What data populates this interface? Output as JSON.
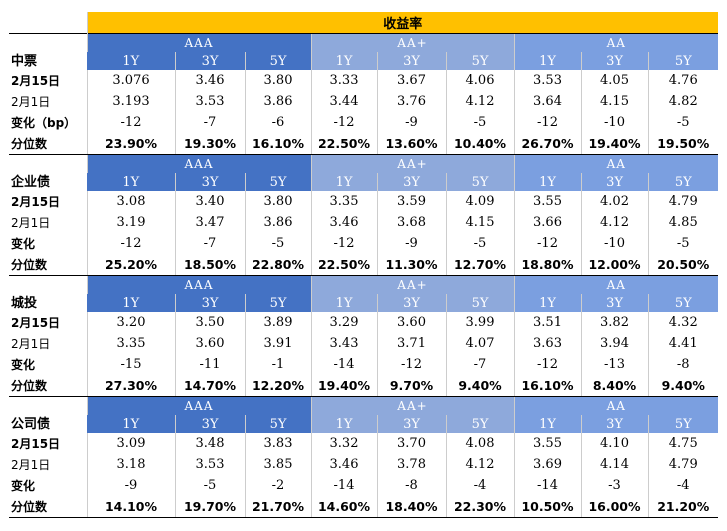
{
  "title": "收益率",
  "tenors": [
    "1Y",
    "3Y",
    "5Y"
  ],
  "sections": [
    {
      "name": "中票",
      "ratings": [
        "AAA",
        "AA+",
        "AA"
      ],
      "rows": [
        {
          "label": "2月15日",
          "bold": true,
          "values": [
            "3.076",
            "3.46",
            "3.80",
            "3.33",
            "3.67",
            "4.06",
            "3.53",
            "4.05",
            "4.76"
          ]
        },
        {
          "label": "2月1日",
          "bold": false,
          "values": [
            "3.193",
            "3.53",
            "3.86",
            "3.44",
            "3.76",
            "4.12",
            "3.64",
            "4.15",
            "4.82"
          ]
        },
        {
          "label": "变化（bp）",
          "bold": true,
          "values": [
            "-12",
            "-7",
            "-6",
            "-12",
            "-9",
            "-5",
            "-12",
            "-10",
            "-5"
          ]
        },
        {
          "label": "分位数",
          "bold": true,
          "pct": true,
          "values": [
            "23.90%",
            "19.30%",
            "16.10%",
            "22.50%",
            "13.60%",
            "10.40%",
            "26.70%",
            "19.40%",
            "19.50%"
          ]
        }
      ]
    },
    {
      "name": "企业债",
      "ratings": [
        "AAA",
        "AA+",
        "AA"
      ],
      "rows": [
        {
          "label": "2月15日",
          "bold": true,
          "values": [
            "3.08",
            "3.40",
            "3.80",
            "3.35",
            "3.59",
            "4.09",
            "3.55",
            "4.02",
            "4.79"
          ]
        },
        {
          "label": "2月1日",
          "bold": false,
          "values": [
            "3.19",
            "3.47",
            "3.86",
            "3.46",
            "3.68",
            "4.15",
            "3.66",
            "4.12",
            "4.85"
          ]
        },
        {
          "label": "变化",
          "bold": true,
          "values": [
            "-12",
            "-7",
            "-5",
            "-12",
            "-9",
            "-5",
            "-12",
            "-10",
            "-5"
          ]
        },
        {
          "label": "分位数",
          "bold": true,
          "pct": true,
          "values": [
            "25.20%",
            "18.50%",
            "22.80%",
            "22.50%",
            "11.30%",
            "12.70%",
            "18.80%",
            "12.00%",
            "20.50%"
          ]
        }
      ]
    },
    {
      "name": "城投",
      "ratings": [
        "AAA",
        "AA+",
        "AA"
      ],
      "rows": [
        {
          "label": "2月15日",
          "bold": true,
          "values": [
            "3.20",
            "3.50",
            "3.89",
            "3.29",
            "3.60",
            "3.99",
            "3.51",
            "3.82",
            "4.32"
          ]
        },
        {
          "label": "2月1日",
          "bold": false,
          "values": [
            "3.35",
            "3.60",
            "3.91",
            "3.43",
            "3.71",
            "4.07",
            "3.63",
            "3.94",
            "4.41"
          ]
        },
        {
          "label": "变化",
          "bold": true,
          "values": [
            "-15",
            "-11",
            "-1",
            "-14",
            "-12",
            "-7",
            "-12",
            "-13",
            "-8"
          ]
        },
        {
          "label": "分位数",
          "bold": true,
          "pct": true,
          "values": [
            "27.30%",
            "14.70%",
            "12.20%",
            "19.40%",
            "9.70%",
            "9.40%",
            "16.10%",
            "8.40%",
            "9.40%"
          ]
        }
      ]
    },
    {
      "name": "公司债",
      "ratings": [
        "AAA",
        "AA+",
        "AA"
      ],
      "rows": [
        {
          "label": "2月15日",
          "bold": true,
          "values": [
            "3.09",
            "3.48",
            "3.83",
            "3.32",
            "3.70",
            "4.08",
            "3.55",
            "4.10",
            "4.75"
          ]
        },
        {
          "label": "2月1日",
          "bold": false,
          "values": [
            "3.18",
            "3.53",
            "3.85",
            "3.46",
            "3.78",
            "4.12",
            "3.69",
            "4.14",
            "4.79"
          ]
        },
        {
          "label": "变化",
          "bold": true,
          "values": [
            "-9",
            "-5",
            "-2",
            "-14",
            "-8",
            "-4",
            "-14",
            "-3",
            "-4"
          ]
        },
        {
          "label": "分位数",
          "bold": true,
          "pct": true,
          "values": [
            "14.10%",
            "19.70%",
            "21.70%",
            "14.60%",
            "18.40%",
            "22.30%",
            "10.50%",
            "16.00%",
            "21.20%"
          ]
        }
      ]
    }
  ],
  "colors": {
    "title_bg": "#ffc000",
    "aaa_bg": "#4472c4",
    "aaplus_bg": "#8ea9db",
    "aa_bg": "#7b9fe0"
  }
}
